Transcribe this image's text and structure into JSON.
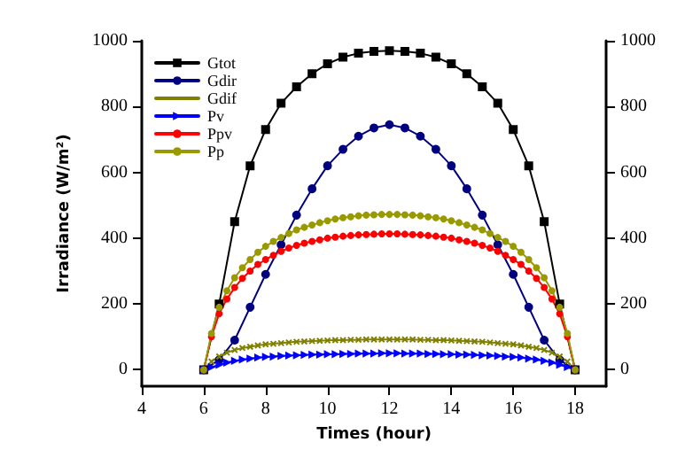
{
  "chart_data": {
    "type": "line",
    "xlabel": "Times (hour)",
    "ylabel": "Irradiance (W/m²)",
    "xlim": [
      4,
      19
    ],
    "xticks": [
      4,
      6,
      8,
      10,
      12,
      14,
      16,
      18
    ],
    "ylim": [
      -50,
      1000
    ],
    "yticks": [
      0,
      200,
      400,
      600,
      800,
      1000
    ],
    "y2lim": [
      -50,
      1000
    ],
    "y2ticks": [
      0,
      200,
      400,
      600,
      800,
      1000
    ],
    "grid": false,
    "legend": "top left",
    "line_style": "solid",
    "series": [
      {
        "name": "Gtot",
        "color": "#000000",
        "marker": "square",
        "x": [
          6,
          6.5,
          7,
          7.5,
          8,
          8.5,
          9,
          9.5,
          10,
          10.5,
          11,
          11.5,
          12,
          12.5,
          13,
          13.5,
          14,
          14.5,
          15,
          15.5,
          16,
          16.5,
          17,
          17.5,
          18
        ],
        "values": [
          0,
          200,
          450,
          620,
          730,
          810,
          860,
          900,
          930,
          950,
          962,
          968,
          970,
          968,
          962,
          950,
          930,
          900,
          860,
          810,
          730,
          620,
          450,
          200,
          0
        ]
      },
      {
        "name": "Gdir",
        "color": "#000080",
        "marker": "circle",
        "x": [
          6,
          6.5,
          7,
          7.5,
          8,
          8.5,
          9,
          9.5,
          10,
          10.5,
          11,
          11.5,
          12,
          12.5,
          13,
          13.5,
          14,
          14.5,
          15,
          15.5,
          16,
          16.5,
          17,
          17.5,
          18
        ],
        "values": [
          0,
          30,
          90,
          190,
          290,
          380,
          470,
          550,
          620,
          670,
          710,
          735,
          745,
          735,
          710,
          670,
          620,
          550,
          470,
          380,
          290,
          190,
          90,
          30,
          0
        ]
      },
      {
        "name": "Gdif",
        "color": "#808000",
        "marker": "cross",
        "x": [
          6,
          6.25,
          6.5,
          6.75,
          7,
          7.25,
          7.5,
          7.75,
          8,
          8.25,
          8.5,
          8.75,
          9,
          9.25,
          9.5,
          9.75,
          10,
          10.25,
          10.5,
          10.75,
          11,
          11.25,
          11.5,
          11.75,
          12,
          12.25,
          12.5,
          12.75,
          13,
          13.25,
          13.5,
          13.75,
          14,
          14.25,
          14.5,
          14.75,
          15,
          15.25,
          15.5,
          15.75,
          16,
          16.25,
          16.5,
          16.75,
          17,
          17.25,
          17.5,
          17.75,
          18
        ],
        "values": [
          0,
          25,
          40,
          52,
          60,
          66,
          70,
          74,
          77,
          79,
          81,
          83,
          85,
          86,
          87,
          88,
          89,
          90,
          90,
          91,
          91,
          92,
          92,
          92,
          92,
          92,
          92,
          92,
          91,
          91,
          90,
          90,
          89,
          88,
          87,
          86,
          85,
          83,
          81,
          79,
          77,
          74,
          70,
          66,
          60,
          52,
          40,
          25,
          0
        ]
      },
      {
        "name": "Pv",
        "color": "#0000ff",
        "marker": "triangle",
        "x": [
          6,
          6.25,
          6.5,
          6.75,
          7,
          7.25,
          7.5,
          7.75,
          8,
          8.25,
          8.5,
          8.75,
          9,
          9.25,
          9.5,
          9.75,
          10,
          10.25,
          10.5,
          10.75,
          11,
          11.25,
          11.5,
          11.75,
          12,
          12.25,
          12.5,
          12.75,
          13,
          13.25,
          13.5,
          13.75,
          14,
          14.25,
          14.5,
          14.75,
          15,
          15.25,
          15.5,
          15.75,
          16,
          16.25,
          16.5,
          16.75,
          17,
          17.25,
          17.5,
          17.75,
          18
        ],
        "values": [
          0,
          8,
          15,
          22,
          27,
          31,
          34,
          37,
          39,
          40,
          42,
          43,
          44,
          45,
          46,
          46,
          47,
          47,
          48,
          48,
          49,
          49,
          49,
          50,
          50,
          50,
          49,
          49,
          49,
          48,
          48,
          47,
          47,
          46,
          46,
          45,
          44,
          43,
          42,
          40,
          39,
          37,
          34,
          31,
          27,
          22,
          15,
          8,
          0
        ]
      },
      {
        "name": "Ppv",
        "color": "#ff0000",
        "marker": "circle",
        "x": [
          6,
          6.25,
          6.5,
          6.75,
          7,
          7.25,
          7.5,
          7.75,
          8,
          8.25,
          8.5,
          8.75,
          9,
          9.25,
          9.5,
          9.75,
          10,
          10.25,
          10.5,
          10.75,
          11,
          11.25,
          11.5,
          11.75,
          12,
          12.25,
          12.5,
          12.75,
          13,
          13.25,
          13.5,
          13.75,
          14,
          14.25,
          14.5,
          14.75,
          15,
          15.25,
          15.5,
          15.75,
          16,
          16.25,
          16.5,
          16.75,
          17,
          17.25,
          17.5,
          17.75,
          18
        ],
        "values": [
          0,
          100,
          170,
          215,
          250,
          278,
          300,
          320,
          335,
          348,
          360,
          370,
          378,
          385,
          390,
          395,
          400,
          403,
          406,
          408,
          410,
          411,
          412,
          413,
          413,
          413,
          412,
          411,
          410,
          408,
          406,
          403,
          400,
          395,
          390,
          385,
          378,
          370,
          360,
          348,
          335,
          320,
          300,
          278,
          250,
          215,
          170,
          100,
          0
        ]
      },
      {
        "name": "Pp",
        "color": "#999900",
        "marker": "circle",
        "x": [
          6,
          6.25,
          6.5,
          6.75,
          7,
          7.25,
          7.5,
          7.75,
          8,
          8.25,
          8.5,
          8.75,
          9,
          9.25,
          9.5,
          9.75,
          10,
          10.25,
          10.5,
          10.75,
          11,
          11.25,
          11.5,
          11.75,
          12,
          12.25,
          12.5,
          12.75,
          13,
          13.25,
          13.5,
          13.75,
          14,
          14.25,
          14.5,
          14.75,
          15,
          15.25,
          15.5,
          15.75,
          16,
          16.25,
          16.5,
          16.75,
          17,
          17.25,
          17.5,
          17.75,
          18
        ],
        "values": [
          0,
          110,
          190,
          240,
          280,
          310,
          335,
          357,
          375,
          390,
          402,
          414,
          425,
          433,
          440,
          447,
          453,
          458,
          462,
          465,
          468,
          470,
          471,
          472,
          472,
          472,
          471,
          470,
          468,
          465,
          462,
          458,
          453,
          447,
          440,
          433,
          425,
          414,
          402,
          390,
          375,
          357,
          335,
          310,
          280,
          240,
          190,
          110,
          0
        ]
      }
    ]
  }
}
